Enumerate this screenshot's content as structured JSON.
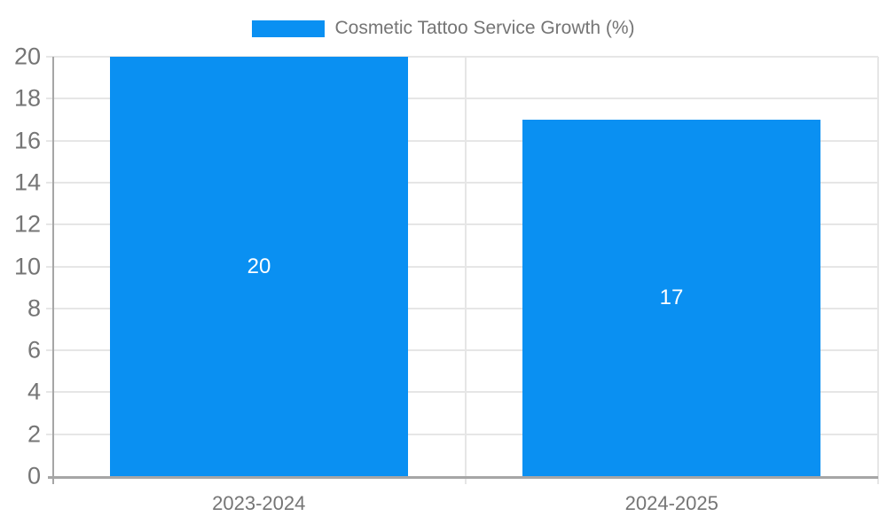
{
  "chart_data": {
    "type": "bar",
    "title": "Cosmetic Tattoo Service Growth (%)",
    "categories": [
      "2023-2024",
      "2024-2025"
    ],
    "values": [
      20,
      17
    ],
    "data_labels": [
      "20",
      "17"
    ],
    "y_ticks": [
      0,
      2,
      4,
      6,
      8,
      10,
      12,
      14,
      16,
      18,
      20
    ],
    "ylim": [
      0,
      20
    ],
    "xlabel": "",
    "ylabel": "",
    "grid": true,
    "legend_position": "top-center",
    "colors": {
      "bar": "#0a90f2",
      "bar_value_text": "#ffffff",
      "axis_text": "#757575",
      "legend_text": "#757575",
      "gridline": "#e6e6e6",
      "axis_line": "#a6a6a6",
      "background": "#ffffff"
    }
  }
}
